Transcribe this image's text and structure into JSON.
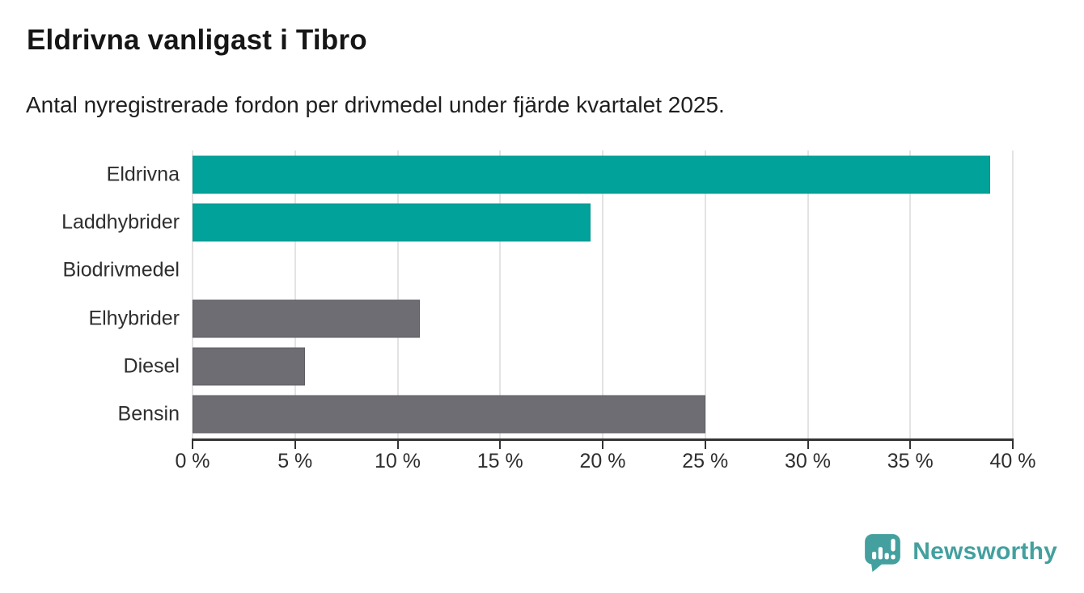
{
  "chart": {
    "title": "Eldrivna vanligast i Tibro",
    "subtitle": "Antal nyregistrerade fordon per drivmedel under fjärde kvartalet 2025."
  },
  "chart_data": {
    "type": "bar",
    "orientation": "horizontal",
    "title": "Eldrivna vanligast i Tibro",
    "subtitle": "Antal nyregistrerade fordon per drivmedel under fjärde kvartalet 2025.",
    "categories": [
      "Eldrivna",
      "Laddhybrider",
      "Biodrivmedel",
      "Elhybrider",
      "Diesel",
      "Bensin"
    ],
    "values": [
      38.9,
      19.4,
      0,
      11.1,
      5.5,
      25.0
    ],
    "unit": "%",
    "xlabel": "",
    "ylabel": "",
    "xlim": [
      0,
      40
    ],
    "x_ticks": [
      0,
      5,
      10,
      15,
      20,
      25,
      30,
      35,
      40
    ],
    "x_tick_labels": [
      "0 %",
      "5 %",
      "10 %",
      "15 %",
      "20 %",
      "25 %",
      "30 %",
      "35 %",
      "40 %"
    ],
    "grid": true,
    "legend": false,
    "bar_colors": [
      "#00a29a",
      "#00a29a",
      "#6d6d73",
      "#6d6d73",
      "#6d6d73",
      "#6d6d73"
    ],
    "bar_border_colors": [
      "#00968e",
      "#00968e",
      "#5f5f65",
      "#5f5f65",
      "#5f5f65",
      "#5f5f65"
    ],
    "highlight_color": "#00a29a",
    "default_color": "#6d6d73",
    "gridline_color": "#e3e3e3",
    "axis_color": "#333333"
  },
  "footer": {
    "brand": "Newsworthy",
    "brand_color": "#43a09f"
  }
}
